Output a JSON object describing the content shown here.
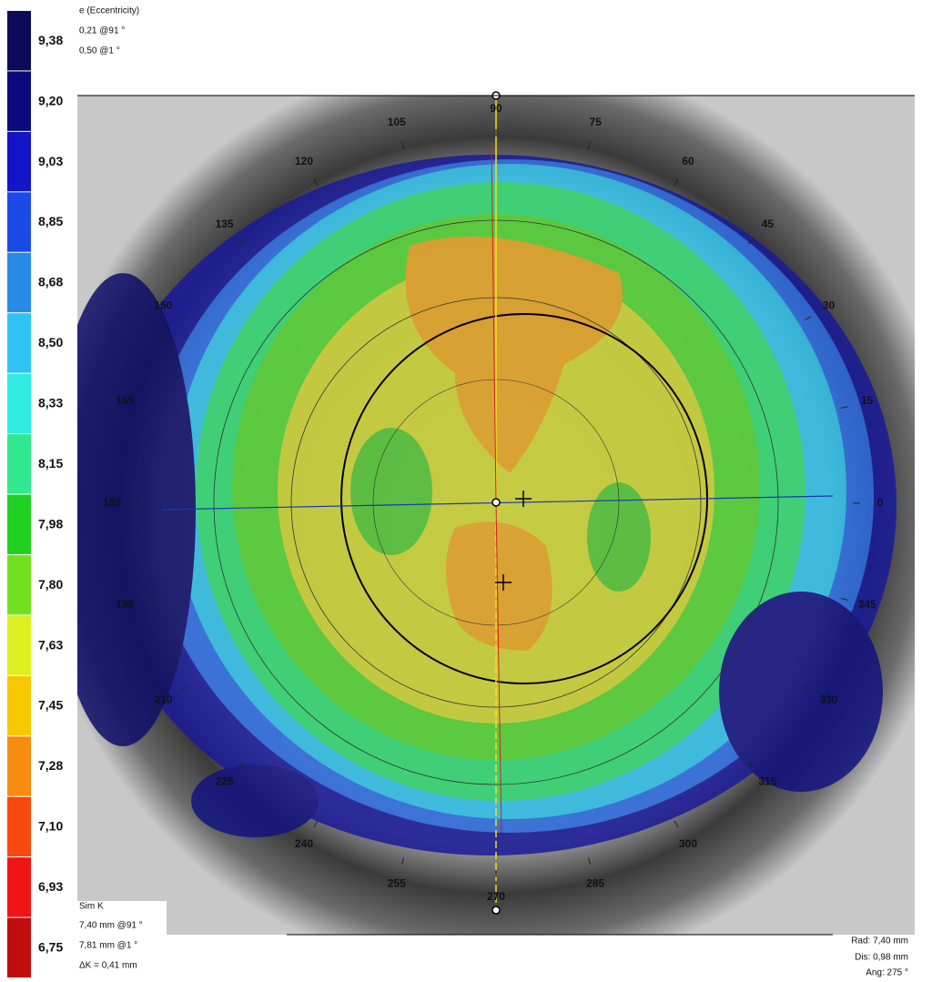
{
  "header": {
    "title": "e (Eccentricity)",
    "lines": [
      "0,21 @91 °",
      "0,50 @1 °"
    ]
  },
  "scale": [
    {
      "label": "9,38",
      "color": "#0b0b5a"
    },
    {
      "label": "9,20",
      "color": "#0a0a7e"
    },
    {
      "label": "9,03",
      "color": "#1414c8"
    },
    {
      "label": "8,85",
      "color": "#1c4ae8"
    },
    {
      "label": "8,68",
      "color": "#2a8ae8"
    },
    {
      "label": "8,50",
      "color": "#30c2f2"
    },
    {
      "label": "8,33",
      "color": "#30ece0"
    },
    {
      "label": "8,15",
      "color": "#30e890"
    },
    {
      "label": "7,98",
      "color": "#20d020"
    },
    {
      "label": "7,80",
      "color": "#72e020"
    },
    {
      "label": "7,63",
      "color": "#dcf020"
    },
    {
      "label": "7,45",
      "color": "#f8c800"
    },
    {
      "label": "7,28",
      "color": "#f88c10"
    },
    {
      "label": "7,10",
      "color": "#f84810"
    },
    {
      "label": "6,93",
      "color": "#f01414"
    },
    {
      "label": "6,75",
      "color": "#c00c0c"
    }
  ],
  "angles": [
    "0",
    "15",
    "30",
    "45",
    "60",
    "75",
    "90",
    "105",
    "120",
    "135",
    "150",
    "165",
    "180",
    "195",
    "210",
    "225",
    "240",
    "255",
    "270",
    "285",
    "300",
    "315",
    "330",
    "345"
  ],
  "simk": {
    "title": "Sim K",
    "lines": [
      "7,40 mm @91 °",
      "7,81 mm @1 °",
      "ΔK = 0,41 mm"
    ]
  },
  "cursor": [
    "Rad: 7,40 mm",
    "Dis: 0,98 mm",
    "Ang: 275 °"
  ]
}
